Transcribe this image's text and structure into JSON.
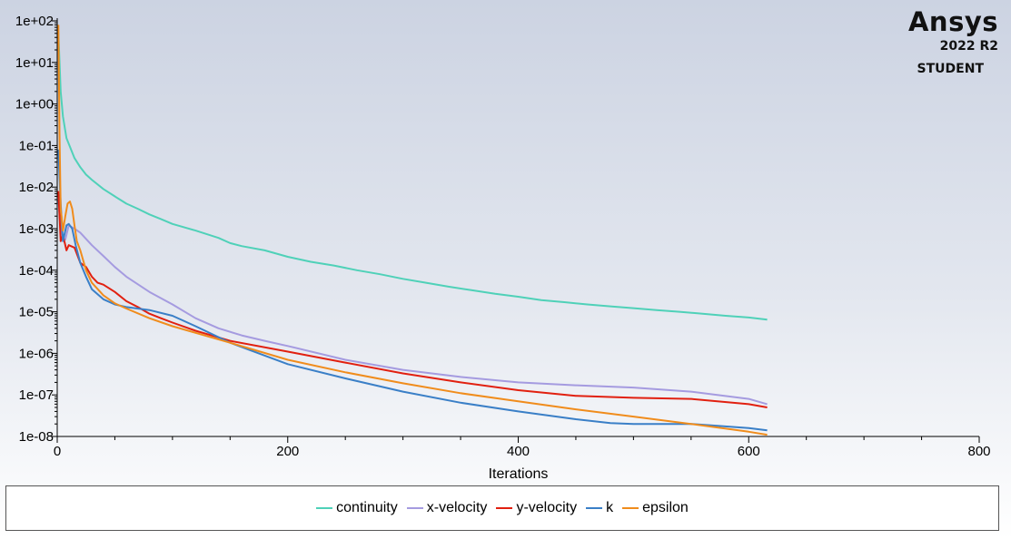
{
  "branding": {
    "name": "Ansys",
    "version": "2022 R2",
    "edition": "STUDENT"
  },
  "chart_data": {
    "type": "line",
    "title": "",
    "xlabel": "Iterations",
    "ylabel": "",
    "xlim": [
      0,
      800
    ],
    "ylim": [
      1e-08,
      100
    ],
    "y_scale": "log",
    "x_ticks": [
      0,
      200,
      400,
      600,
      800
    ],
    "x_tick_labels": [
      "0",
      "200",
      "400",
      "600",
      "800"
    ],
    "y_ticks": [
      1e-08,
      1e-07,
      1e-06,
      1e-05,
      0.0001,
      0.001,
      0.01,
      0.1,
      1,
      10,
      100
    ],
    "y_tick_labels": [
      "1e-08",
      "1e-07",
      "1e-06",
      "1e-05",
      "1e-04",
      "1e-03",
      "1e-02",
      "1e-01",
      "1e+00",
      "1e+01",
      "1e+02"
    ],
    "grid": false,
    "legend_position": "bottom",
    "series": [
      {
        "name": "continuity",
        "color": "#4fd1b8",
        "x": [
          1,
          3,
          5,
          8,
          12,
          15,
          20,
          25,
          30,
          40,
          50,
          60,
          70,
          80,
          90,
          100,
          120,
          140,
          150,
          160,
          180,
          200,
          220,
          240,
          260,
          280,
          300,
          320,
          340,
          360,
          380,
          400,
          420,
          440,
          460,
          480,
          500,
          520,
          540,
          560,
          580,
          600,
          616
        ],
        "y": [
          50,
          2,
          0.5,
          0.15,
          0.08,
          0.05,
          0.03,
          0.02,
          0.015,
          0.009,
          0.006,
          0.004,
          0.003,
          0.0022,
          0.0017,
          0.0013,
          0.0009,
          0.0006,
          0.00045,
          0.00038,
          0.0003,
          0.00021,
          0.00016,
          0.00013,
          0.0001,
          8e-05,
          6.2e-05,
          5e-05,
          4e-05,
          3.3e-05,
          2.7e-05,
          2.3e-05,
          1.9e-05,
          1.7e-05,
          1.5e-05,
          1.35e-05,
          1.22e-05,
          1.1e-05,
          1e-05,
          9e-06,
          8e-06,
          7.3e-06,
          6.5e-06
        ]
      },
      {
        "name": "x-velocity",
        "color": "#a59be0",
        "x": [
          1,
          3,
          5,
          7,
          10,
          15,
          20,
          30,
          40,
          50,
          60,
          80,
          100,
          120,
          140,
          160,
          180,
          200,
          250,
          300,
          350,
          400,
          450,
          500,
          550,
          600,
          616
        ],
        "y": [
          0.005,
          0.001,
          0.0006,
          0.00055,
          0.0012,
          0.001,
          0.0008,
          0.0004,
          0.00022,
          0.00012,
          7e-05,
          3e-05,
          1.5e-05,
          7e-06,
          4e-06,
          2.7e-06,
          2e-06,
          1.5e-06,
          7e-07,
          4e-07,
          2.7e-07,
          2e-07,
          1.7e-07,
          1.5e-07,
          1.2e-07,
          8e-08,
          6e-08
        ]
      },
      {
        "name": "y-velocity",
        "color": "#e12010",
        "x": [
          1,
          3,
          5,
          8,
          10,
          15,
          20,
          25,
          30,
          35,
          40,
          50,
          60,
          70,
          80,
          90,
          100,
          120,
          150,
          200,
          250,
          300,
          350,
          400,
          450,
          500,
          550,
          600,
          616
        ],
        "y": [
          0.008,
          0.0005,
          0.0007,
          0.0003,
          0.0004,
          0.00035,
          0.00015,
          0.00012,
          7e-05,
          5e-05,
          4.5e-05,
          3e-05,
          1.8e-05,
          1.3e-05,
          9e-06,
          7e-06,
          5.5e-06,
          3.5e-06,
          2e-06,
          1.1e-06,
          6e-07,
          3.3e-07,
          2e-07,
          1.3e-07,
          9.5e-08,
          8.5e-08,
          8e-08,
          6e-08,
          5e-08
        ]
      },
      {
        "name": "k",
        "color": "#3a7fc7",
        "x": [
          1,
          3,
          5,
          8,
          10,
          13,
          16,
          20,
          25,
          30,
          40,
          50,
          60,
          80,
          100,
          120,
          150,
          200,
          250,
          300,
          350,
          400,
          450,
          480,
          500,
          550,
          600,
          616
        ],
        "y": [
          0.08,
          0.004,
          0.0005,
          0.0012,
          0.0013,
          0.001,
          0.0004,
          0.00015,
          7e-05,
          3.5e-05,
          2e-05,
          1.5e-05,
          1.3e-05,
          1.1e-05,
          8e-06,
          4.5e-06,
          1.8e-06,
          5.5e-07,
          2.5e-07,
          1.2e-07,
          6.5e-08,
          4e-08,
          2.6e-08,
          2.1e-08,
          2e-08,
          2e-08,
          1.6e-08,
          1.4e-08
        ]
      },
      {
        "name": "epsilon",
        "color": "#f08c1c",
        "x": [
          1,
          2,
          3,
          5,
          7,
          9,
          11,
          13,
          15,
          17,
          20,
          25,
          30,
          40,
          50,
          60,
          80,
          100,
          150,
          200,
          250,
          300,
          350,
          400,
          450,
          500,
          550,
          600,
          616
        ],
        "y": [
          80,
          0.2,
          0.003,
          0.0009,
          0.002,
          0.004,
          0.0045,
          0.003,
          0.0012,
          0.0005,
          0.0003,
          0.0001,
          5e-05,
          2.5e-05,
          1.6e-05,
          1.2e-05,
          7e-06,
          4.5e-06,
          1.8e-06,
          7e-07,
          3.5e-07,
          1.9e-07,
          1.1e-07,
          7e-08,
          4.5e-08,
          3e-08,
          2e-08,
          1.3e-08,
          1.1e-08
        ]
      }
    ]
  }
}
